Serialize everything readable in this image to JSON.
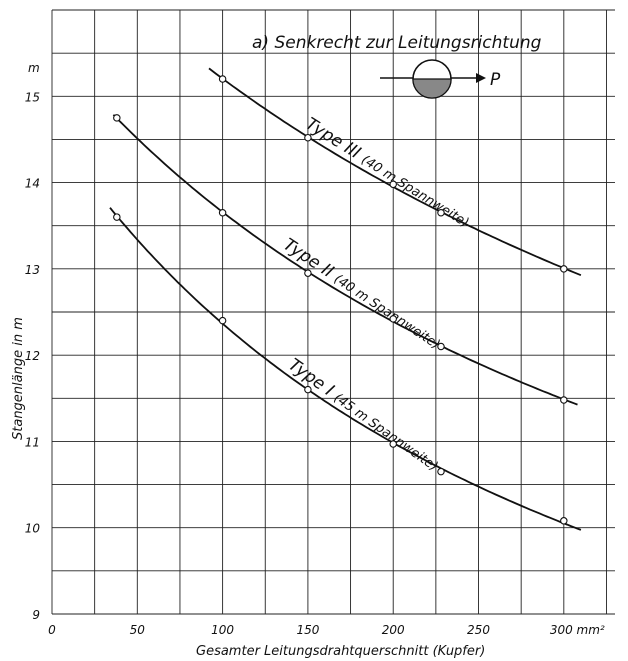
{
  "chart_data": {
    "type": "line",
    "title": "a)  Senkrecht zur Leitungsrichtung",
    "xlabel": "Gesamter Leitungsdrahtquerschnitt (Kupfer)",
    "ylabel": "Stangenlänge  in  m",
    "x_unit": "mm²",
    "y_unit": "m",
    "xlim": [
      0,
      330
    ],
    "ylim": [
      9,
      16
    ],
    "x_ticks": [
      "0",
      "50",
      "100",
      "150",
      "200",
      "250",
      "300"
    ],
    "x_tick_last": "300 mm²",
    "y_ticks": [
      "9",
      "10",
      "11",
      "12",
      "13",
      "14",
      "15"
    ],
    "grid": true,
    "force_symbol_label": "P",
    "series": [
      {
        "name": "Type III (40 m Spannweite)",
        "label_prefix": "Type III",
        "label_suffix": "(40 m Spannweite)",
        "curve_x": [
          92,
          310
        ],
        "x": [
          100,
          150,
          200,
          228,
          300
        ],
        "y": [
          15.2,
          14.52,
          13.98,
          13.65,
          13.0
        ]
      },
      {
        "name": "Type II (40 m Spannweite)",
        "label_prefix": "Type II",
        "label_suffix": "(40 m Spannweite)",
        "curve_x": [
          36,
          308
        ],
        "x": [
          38,
          100,
          150,
          200,
          228,
          300
        ],
        "y": [
          14.75,
          13.65,
          12.95,
          12.42,
          12.1,
          11.48
        ]
      },
      {
        "name": "Type I (45 m Spannweite)",
        "label_prefix": "Type I",
        "label_suffix": "(45 m Spannweite)",
        "curve_x": [
          34,
          310
        ],
        "x": [
          38,
          100,
          150,
          200,
          228,
          300
        ],
        "y": [
          13.6,
          12.4,
          11.6,
          10.97,
          10.65,
          10.08
        ]
      }
    ]
  }
}
